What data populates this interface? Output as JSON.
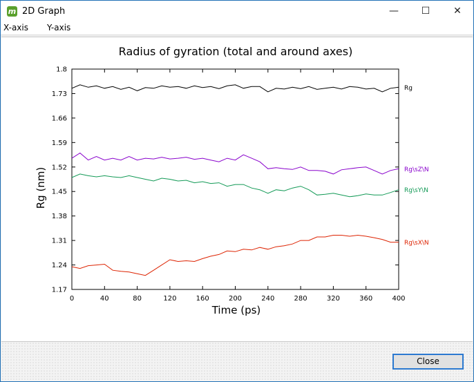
{
  "window": {
    "title": "2D Graph",
    "app_icon_letter": "m",
    "controls": {
      "minimize": "—",
      "maximize": "☐",
      "close": "✕"
    }
  },
  "menu": {
    "items": [
      "X-axis",
      "Y-axis"
    ]
  },
  "footer": {
    "close_label": "Close"
  },
  "colors": {
    "Rg": "#000000",
    "RgZ": "#8800cc",
    "RgY": "#119955",
    "RgX": "#dd2200"
  },
  "chart_data": {
    "type": "line",
    "title": "Radius of gyration (total and around axes)",
    "xlabel": "Time (ps)",
    "ylabel": "Rg (nm)",
    "xlim": [
      0,
      400
    ],
    "ylim": [
      1.17,
      1.8
    ],
    "xticks": [
      0,
      40,
      80,
      120,
      160,
      200,
      240,
      280,
      320,
      360,
      400
    ],
    "yticks": [
      1.17,
      1.24,
      1.31,
      1.38,
      1.45,
      1.52,
      1.59,
      1.66,
      1.73,
      1.8
    ],
    "legend": "right-end labels",
    "grid": false,
    "series": [
      {
        "name": "Rg",
        "x": [
          0,
          10,
          20,
          30,
          40,
          50,
          60,
          70,
          80,
          90,
          100,
          110,
          120,
          130,
          140,
          150,
          160,
          170,
          180,
          190,
          200,
          210,
          220,
          230,
          240,
          250,
          260,
          270,
          280,
          290,
          300,
          310,
          320,
          330,
          340,
          350,
          360,
          370,
          380,
          390,
          400
        ],
        "y": [
          1.745,
          1.755,
          1.748,
          1.752,
          1.745,
          1.75,
          1.742,
          1.748,
          1.738,
          1.747,
          1.745,
          1.752,
          1.748,
          1.75,
          1.745,
          1.752,
          1.747,
          1.75,
          1.744,
          1.752,
          1.755,
          1.745,
          1.75,
          1.75,
          1.735,
          1.745,
          1.743,
          1.748,
          1.744,
          1.75,
          1.742,
          1.745,
          1.748,
          1.743,
          1.75,
          1.748,
          1.743,
          1.745,
          1.735,
          1.745,
          1.748
        ]
      },
      {
        "name": "Rg\\sZ\\N",
        "x": [
          0,
          10,
          20,
          30,
          40,
          50,
          60,
          70,
          80,
          90,
          100,
          110,
          120,
          130,
          140,
          150,
          160,
          170,
          180,
          190,
          200,
          210,
          220,
          230,
          240,
          250,
          260,
          270,
          280,
          290,
          300,
          310,
          320,
          330,
          340,
          350,
          360,
          370,
          380,
          390,
          400
        ],
        "y": [
          1.545,
          1.56,
          1.54,
          1.55,
          1.54,
          1.545,
          1.54,
          1.55,
          1.54,
          1.545,
          1.543,
          1.548,
          1.543,
          1.545,
          1.548,
          1.542,
          1.545,
          1.54,
          1.535,
          1.545,
          1.54,
          1.555,
          1.545,
          1.535,
          1.515,
          1.518,
          1.515,
          1.513,
          1.52,
          1.51,
          1.51,
          1.508,
          1.5,
          1.512,
          1.515,
          1.518,
          1.52,
          1.51,
          1.5,
          1.51,
          1.515
        ]
      },
      {
        "name": "Rg\\sY\\N",
        "x": [
          0,
          10,
          20,
          30,
          40,
          50,
          60,
          70,
          80,
          90,
          100,
          110,
          120,
          130,
          140,
          150,
          160,
          170,
          180,
          190,
          200,
          210,
          220,
          230,
          240,
          250,
          260,
          270,
          280,
          290,
          300,
          310,
          320,
          330,
          340,
          350,
          360,
          370,
          380,
          390,
          400
        ],
        "y": [
          1.49,
          1.5,
          1.495,
          1.492,
          1.495,
          1.492,
          1.49,
          1.495,
          1.49,
          1.485,
          1.48,
          1.488,
          1.485,
          1.48,
          1.482,
          1.475,
          1.478,
          1.473,
          1.475,
          1.465,
          1.47,
          1.47,
          1.46,
          1.455,
          1.445,
          1.455,
          1.452,
          1.46,
          1.465,
          1.455,
          1.44,
          1.442,
          1.445,
          1.44,
          1.435,
          1.438,
          1.443,
          1.44,
          1.44,
          1.447,
          1.455
        ]
      },
      {
        "name": "Rg\\sX\\N",
        "x": [
          0,
          10,
          20,
          30,
          40,
          50,
          60,
          70,
          80,
          90,
          100,
          110,
          120,
          130,
          140,
          150,
          160,
          170,
          180,
          190,
          200,
          210,
          220,
          230,
          240,
          250,
          260,
          270,
          280,
          290,
          300,
          310,
          320,
          330,
          340,
          350,
          360,
          370,
          380,
          390,
          400
        ],
        "y": [
          1.235,
          1.23,
          1.238,
          1.24,
          1.242,
          1.225,
          1.222,
          1.22,
          1.215,
          1.21,
          1.225,
          1.24,
          1.255,
          1.25,
          1.252,
          1.25,
          1.258,
          1.265,
          1.27,
          1.28,
          1.278,
          1.285,
          1.283,
          1.29,
          1.285,
          1.292,
          1.295,
          1.3,
          1.31,
          1.31,
          1.32,
          1.32,
          1.325,
          1.325,
          1.322,
          1.325,
          1.322,
          1.318,
          1.313,
          1.305,
          1.305
        ]
      }
    ]
  }
}
